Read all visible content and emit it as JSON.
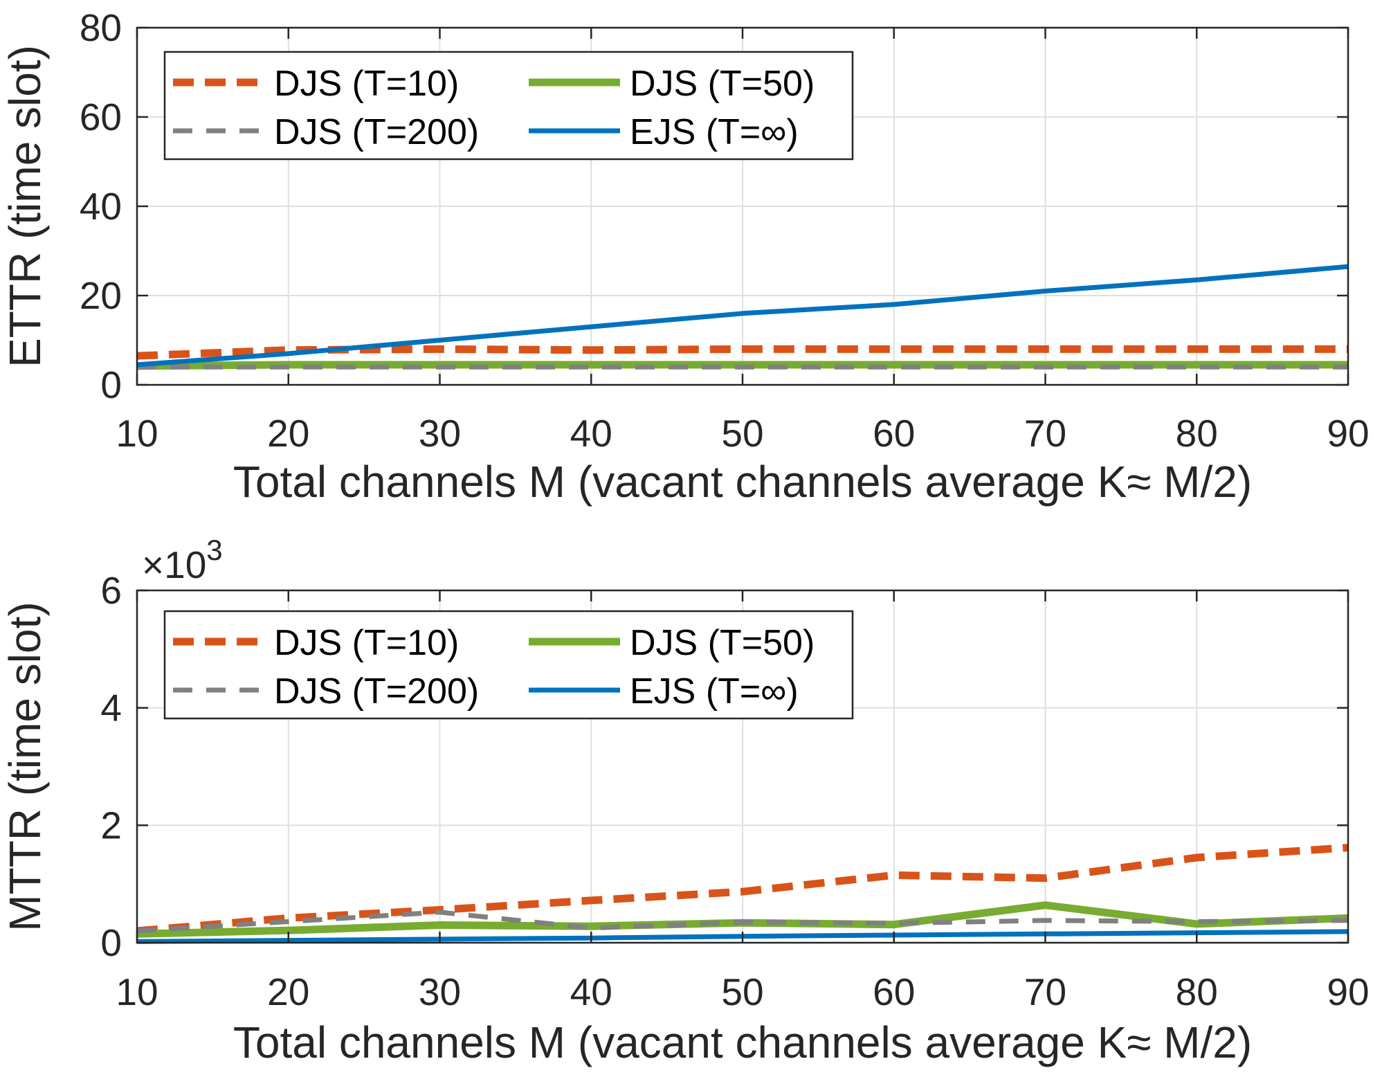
{
  "chart_data": [
    {
      "type": "line",
      "xlabel": "Total channels M (vacant channels average K≈ M/2)",
      "ylabel": "ETTR (time slot)",
      "xlim": [
        10,
        90
      ],
      "ylim": [
        0,
        80
      ],
      "xticks": [
        10,
        20,
        30,
        40,
        50,
        60,
        70,
        80,
        90
      ],
      "yticks": [
        0,
        20,
        40,
        60,
        80
      ],
      "xtick_labels": [
        "10",
        "20",
        "30",
        "40",
        "50",
        "60",
        "70",
        "80",
        "90"
      ],
      "ytick_labels": [
        "0",
        "20",
        "40",
        "60",
        "80"
      ],
      "grid": true,
      "legend_position": "top-left",
      "x": [
        10,
        20,
        30,
        40,
        50,
        60,
        70,
        80,
        90
      ],
      "series": [
        {
          "name": "DJS (T=10)",
          "color": "#D95319",
          "style": "dashed-thick",
          "values": [
            6.5,
            7.8,
            8,
            7.8,
            8,
            8,
            8,
            8,
            8
          ]
        },
        {
          "name": "DJS (T=50)",
          "color": "#77AC30",
          "style": "solid-thick",
          "values": [
            4.2,
            4.5,
            4.5,
            4.5,
            4.5,
            4.5,
            4.5,
            4.5,
            4.5
          ]
        },
        {
          "name": "DJS (T=200)",
          "color": "#808080",
          "style": "dashed",
          "values": [
            4,
            4,
            4,
            4,
            4,
            4,
            4,
            4,
            4
          ]
        },
        {
          "name": "EJS (T=∞)",
          "color": "#0072BD",
          "style": "solid",
          "values": [
            4.5,
            7,
            10,
            13,
            16,
            18,
            21,
            23.5,
            26.5
          ]
        }
      ]
    },
    {
      "type": "line",
      "xlabel": "Total channels M (vacant channels average K≈ M/2)",
      "ylabel": "MTTR (time slot)",
      "exponent_label": "×10",
      "exponent_power": "3",
      "xlim": [
        10,
        90
      ],
      "ylim": [
        0,
        6000
      ],
      "xticks": [
        10,
        20,
        30,
        40,
        50,
        60,
        70,
        80,
        90
      ],
      "yticks": [
        0,
        2000,
        4000,
        6000
      ],
      "xtick_labels": [
        "10",
        "20",
        "30",
        "40",
        "50",
        "60",
        "70",
        "80",
        "90"
      ],
      "ytick_labels": [
        "0",
        "2",
        "4",
        "6"
      ],
      "grid": true,
      "legend_position": "top-left",
      "x": [
        10,
        20,
        30,
        40,
        50,
        60,
        70,
        80,
        90
      ],
      "series": [
        {
          "name": "DJS (T=10)",
          "color": "#D95319",
          "style": "dashed-thick",
          "values": [
            200,
            420,
            560,
            720,
            870,
            1150,
            1100,
            1450,
            1620
          ]
        },
        {
          "name": "DJS (T=50)",
          "color": "#77AC30",
          "style": "solid-thick",
          "values": [
            150,
            210,
            300,
            280,
            340,
            310,
            640,
            320,
            420
          ]
        },
        {
          "name": "DJS (T=200)",
          "color": "#808080",
          "style": "dashed",
          "values": [
            200,
            360,
            520,
            250,
            350,
            330,
            380,
            360,
            380
          ]
        },
        {
          "name": "EJS (T=∞)",
          "color": "#0072BD",
          "style": "solid",
          "values": [
            20,
            40,
            60,
            80,
            110,
            130,
            150,
            170,
            190
          ]
        }
      ]
    }
  ]
}
